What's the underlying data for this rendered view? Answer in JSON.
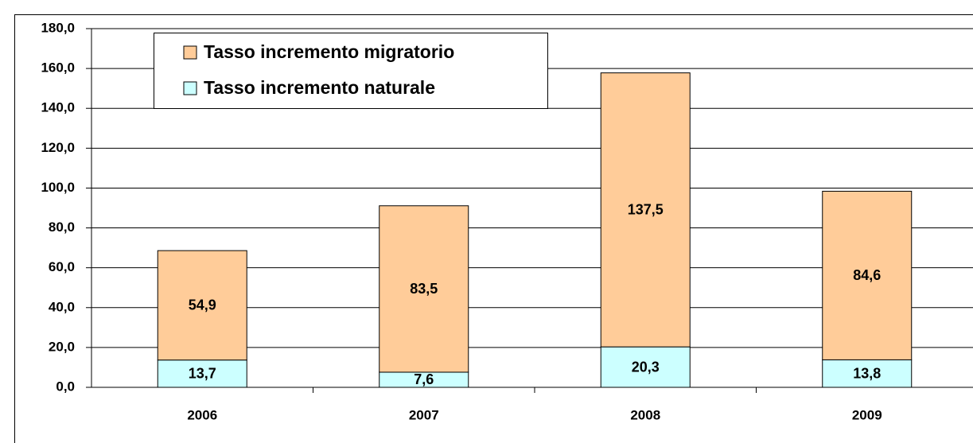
{
  "chart_data": {
    "type": "stacked_bar",
    "categories": [
      "2006",
      "2007",
      "2008",
      "2009"
    ],
    "series": [
      {
        "name": "Tasso incremento naturale",
        "color": "#CCFFFF",
        "values": [
          13.7,
          7.6,
          20.3,
          13.8
        ],
        "value_labels": [
          "13,7",
          "7,6",
          "20,3",
          "13,8"
        ]
      },
      {
        "name": "Tasso incremento migratorio",
        "color": "#FFCC99",
        "values": [
          54.9,
          83.5,
          137.5,
          84.6
        ],
        "value_labels": [
          "54,9",
          "83,5",
          "137,5",
          "84,6"
        ]
      }
    ],
    "ylim": [
      0,
      180
    ],
    "yticks": [
      {
        "value": 0,
        "label": "0,0"
      },
      {
        "value": 20,
        "label": "20,0"
      },
      {
        "value": 40,
        "label": "40,0"
      },
      {
        "value": 60,
        "label": "60,0"
      },
      {
        "value": 80,
        "label": "80,0"
      },
      {
        "value": 100,
        "label": "100,0"
      },
      {
        "value": 120,
        "label": "120,0"
      },
      {
        "value": 140,
        "label": "140,0"
      },
      {
        "value": 160,
        "label": "160,0"
      },
      {
        "value": 180,
        "label": "180,0"
      }
    ],
    "grid": true
  }
}
